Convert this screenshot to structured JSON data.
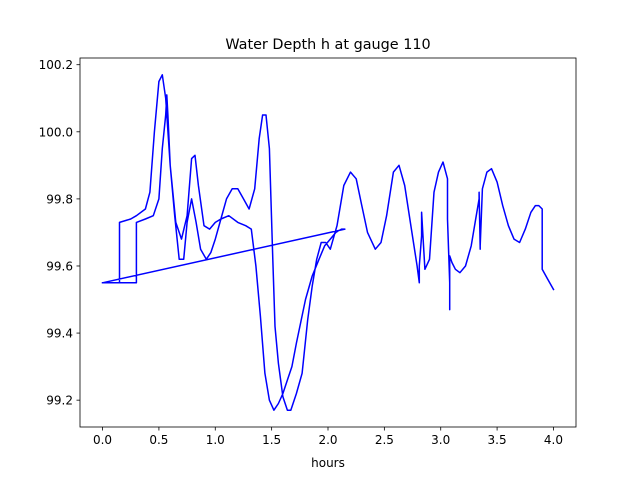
{
  "chart_data": {
    "type": "line",
    "title": "Water Depth h at gauge 110",
    "xlabel": "hours",
    "ylabel": "",
    "xlim": [
      -0.2,
      4.2
    ],
    "ylim": [
      99.12,
      100.22
    ],
    "xticks": [
      0.0,
      0.5,
      1.0,
      1.5,
      2.0,
      2.5,
      3.0,
      3.5,
      4.0
    ],
    "xtick_labels": [
      "0.0",
      "0.5",
      "1.0",
      "1.5",
      "2.0",
      "2.5",
      "3.0",
      "3.5",
      "4.0"
    ],
    "yticks": [
      99.2,
      99.4,
      99.6,
      99.8,
      100.0,
      100.2
    ],
    "ytick_labels": [
      "99.2",
      "99.4",
      "99.6",
      "99.8",
      "100.0",
      "100.2"
    ],
    "grid": false,
    "legend": "none",
    "series": [
      {
        "color": "#0000ff",
        "x": [
          0.0,
          0.1,
          0.15,
          0.15,
          0.25,
          0.3,
          0.38,
          0.42,
          0.46,
          0.5,
          0.53,
          0.56,
          0.6,
          0.65,
          0.7,
          0.75,
          0.79,
          0.82,
          0.85,
          0.9,
          0.95,
          1.0,
          1.05,
          1.12,
          1.2,
          1.27,
          1.32,
          1.36,
          1.4,
          1.44,
          1.48,
          1.52,
          1.56,
          1.6,
          1.64,
          1.68,
          1.72,
          1.8,
          1.86,
          1.92,
          1.97,
          2.02,
          2.07,
          2.12,
          2.15,
          2.15,
          0.0,
          0.3,
          0.3,
          0.38,
          0.45,
          0.5,
          0.53,
          0.56,
          0.57,
          0.58,
          0.6,
          0.64,
          0.68,
          0.72,
          0.75,
          0.79,
          0.83,
          0.87,
          0.92,
          0.96,
          1.0,
          1.05,
          1.1,
          1.15,
          1.2,
          1.25,
          1.3,
          1.35,
          1.39,
          1.42,
          1.45,
          1.48,
          1.51,
          1.53,
          1.56,
          1.6,
          1.64,
          1.67,
          1.72,
          1.77,
          1.82,
          1.86,
          1.9,
          1.94,
          1.98,
          2.02,
          2.08,
          2.14,
          2.2,
          2.25,
          2.3,
          2.35,
          2.42,
          2.47,
          2.52,
          2.58,
          2.63,
          2.68,
          2.74,
          2.79,
          2.81,
          2.81,
          2.83,
          2.83,
          2.86,
          2.9,
          2.94,
          2.98,
          3.02,
          3.06,
          3.06,
          3.08,
          3.08,
          3.08,
          3.1,
          3.13,
          3.17,
          3.22,
          3.27,
          3.31,
          3.34,
          3.34,
          3.35,
          3.35,
          3.37,
          3.41,
          3.45,
          3.5,
          3.55,
          3.6,
          3.65,
          3.7,
          3.75,
          3.8,
          3.84,
          3.87,
          3.9,
          3.9,
          3.95,
          4.0
        ],
        "y": [
          99.55,
          99.55,
          99.55,
          99.73,
          99.74,
          99.75,
          99.77,
          99.82,
          100.0,
          100.15,
          100.17,
          100.1,
          99.9,
          99.73,
          99.68,
          99.75,
          99.92,
          99.93,
          99.84,
          99.72,
          99.71,
          99.73,
          99.74,
          99.75,
          99.73,
          99.72,
          99.71,
          99.6,
          99.45,
          99.28,
          99.2,
          99.17,
          99.19,
          99.22,
          99.26,
          99.3,
          99.37,
          99.5,
          99.57,
          99.62,
          99.66,
          99.68,
          99.7,
          99.71,
          99.71,
          99.71,
          99.55,
          99.55,
          99.73,
          99.74,
          99.75,
          99.8,
          99.95,
          100.05,
          100.11,
          100.05,
          99.9,
          99.75,
          99.62,
          99.62,
          99.73,
          99.8,
          99.73,
          99.65,
          99.62,
          99.64,
          99.68,
          99.74,
          99.8,
          99.83,
          99.83,
          99.8,
          99.77,
          99.83,
          99.98,
          100.05,
          100.05,
          99.95,
          99.62,
          99.42,
          99.31,
          99.21,
          99.17,
          99.17,
          99.22,
          99.28,
          99.44,
          99.54,
          99.62,
          99.67,
          99.67,
          99.65,
          99.72,
          99.84,
          99.88,
          99.86,
          99.78,
          99.7,
          99.65,
          99.67,
          99.75,
          99.88,
          99.9,
          99.84,
          99.71,
          99.6,
          99.55,
          99.6,
          99.69,
          99.76,
          99.59,
          99.62,
          99.82,
          99.88,
          99.91,
          99.86,
          99.74,
          99.55,
          99.47,
          99.63,
          99.61,
          99.59,
          99.58,
          99.6,
          99.66,
          99.74,
          99.8,
          99.82,
          99.65,
          99.66,
          99.83,
          99.88,
          99.89,
          99.85,
          99.78,
          99.72,
          99.68,
          99.67,
          99.71,
          99.76,
          99.78,
          99.78,
          99.77,
          99.59,
          99.56,
          99.53
        ]
      }
    ]
  }
}
